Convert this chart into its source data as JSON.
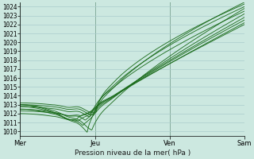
{
  "xlabel": "Pression niveau de la mer( hPa )",
  "bg_color": "#cce8e0",
  "plot_bg_color": "#cce8e0",
  "grid_color": "#aacccc",
  "line_color": "#1a6b1a",
  "vline_color": "#336633",
  "ylim": [
    1009.5,
    1024.5
  ],
  "yticks": [
    1010,
    1011,
    1012,
    1013,
    1014,
    1015,
    1016,
    1017,
    1018,
    1019,
    1020,
    1021,
    1022,
    1023,
    1024
  ],
  "day_labels": [
    "Mer",
    "Jeu",
    "Ven",
    "Sam"
  ],
  "day_positions": [
    0.0,
    0.333,
    0.667,
    1.0
  ],
  "curve_params": [
    [
      1013.0,
      1010.0,
      0.3,
      1024.5,
      0.6
    ],
    [
      1013.0,
      1010.3,
      0.32,
      1023.8,
      0.75
    ],
    [
      1012.8,
      1010.6,
      0.28,
      1023.2,
      0.82
    ],
    [
      1012.5,
      1011.0,
      0.26,
      1022.8,
      0.88
    ],
    [
      1012.5,
      1011.3,
      0.29,
      1022.5,
      0.85
    ],
    [
      1012.3,
      1011.6,
      0.27,
      1022.0,
      0.9
    ],
    [
      1012.8,
      1011.8,
      0.31,
      1023.5,
      0.7
    ],
    [
      1013.0,
      1012.0,
      0.33,
      1024.0,
      0.65
    ],
    [
      1012.0,
      1011.2,
      0.25,
      1022.2,
      0.92
    ],
    [
      1013.2,
      1012.2,
      0.34,
      1024.3,
      0.6
    ]
  ]
}
